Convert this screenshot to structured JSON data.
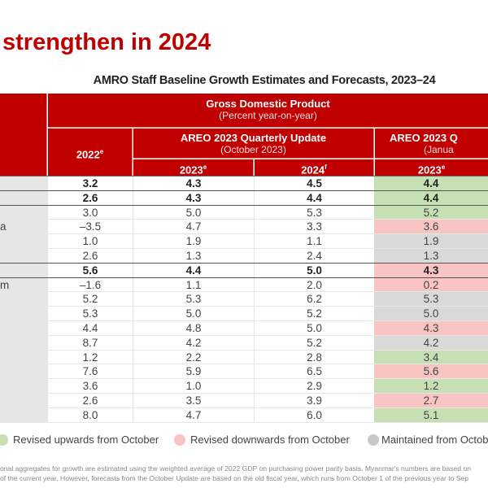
{
  "title": "strengthen in 2024",
  "subtitle": "AMRO Staff Baseline Growth Estimates and Forecasts, 2023–24",
  "header": {
    "gdp_title": "Gross Domestic Product",
    "gdp_subtitle": "(Percent year-on-year)",
    "col_2022": "2022",
    "col_2022_sup": "e",
    "oct_title": "AREO 2023 Quarterly Update",
    "oct_subtitle": "(October 2023)",
    "jan_title": "AREO 2023 Q",
    "jan_subtitle": "(Janua",
    "oct_2023": "2023",
    "oct_2023_sup": "e",
    "oct_2024": "2024",
    "oct_2024_sup": "f",
    "jan_2023": "2023",
    "jan_2023_sup": "e"
  },
  "colors": {
    "header_red": "#c00000",
    "upward": "#c6e0b4",
    "downward": "#f8c4c4",
    "maintained": "#d9d9d9",
    "label_bg": "#e7e6e6"
  },
  "rows": [
    {
      "label": "",
      "v2022": "3.2",
      "oct2023": "4.3",
      "oct2024": "4.5",
      "jan2023": "4.4",
      "revision": "upward",
      "bold": true
    },
    {
      "label": "",
      "v2022": "2.6",
      "oct2023": "4.3",
      "oct2024": "4.4",
      "jan2023": "4.4",
      "revision": "upward",
      "bold": true
    },
    {
      "label": "",
      "v2022": "3.0",
      "oct2023": "5.0",
      "oct2024": "5.3",
      "jan2023": "5.2",
      "revision": "upward"
    },
    {
      "label": "a",
      "v2022": "–3.5",
      "oct2023": "4.7",
      "oct2024": "3.3",
      "jan2023": "3.6",
      "revision": "downward"
    },
    {
      "label": "",
      "v2022": "1.0",
      "oct2023": "1.9",
      "oct2024": "1.1",
      "jan2023": "1.9",
      "revision": "maintained"
    },
    {
      "label": "",
      "v2022": "2.6",
      "oct2023": "1.3",
      "oct2024": "2.4",
      "jan2023": "1.3",
      "revision": "maintained"
    },
    {
      "label": "",
      "v2022": "5.6",
      "oct2023": "4.4",
      "oct2024": "5.0",
      "jan2023": "4.3",
      "revision": "downward",
      "bold": true
    },
    {
      "label": "m",
      "v2022": "–1.6",
      "oct2023": "1.1",
      "oct2024": "2.0",
      "jan2023": "0.2",
      "revision": "downward"
    },
    {
      "label": "",
      "v2022": "5.2",
      "oct2023": "5.3",
      "oct2024": "6.2",
      "jan2023": "5.3",
      "revision": "maintained"
    },
    {
      "label": "",
      "v2022": "5.3",
      "oct2023": "5.0",
      "oct2024": "5.2",
      "jan2023": "5.0",
      "revision": "maintained"
    },
    {
      "label": "",
      "v2022": "4.4",
      "oct2023": "4.8",
      "oct2024": "5.0",
      "jan2023": "4.3",
      "revision": "downward"
    },
    {
      "label": "",
      "v2022": "8.7",
      "oct2023": "4.2",
      "oct2024": "5.2",
      "jan2023": "4.2",
      "revision": "maintained"
    },
    {
      "label": "",
      "v2022": "1.2",
      "oct2023": "2.2",
      "oct2024": "2.8",
      "jan2023": "3.4",
      "revision": "upward"
    },
    {
      "label": "",
      "v2022": "7.6",
      "oct2023": "5.9",
      "oct2024": "6.5",
      "jan2023": "5.6",
      "revision": "downward"
    },
    {
      "label": "",
      "v2022": "3.6",
      "oct2023": "1.0",
      "oct2024": "2.9",
      "jan2023": "1.2",
      "revision": "upward"
    },
    {
      "label": "",
      "v2022": "2.6",
      "oct2023": "3.5",
      "oct2024": "3.9",
      "jan2023": "2.7",
      "revision": "downward"
    },
    {
      "label": "",
      "v2022": "8.0",
      "oct2023": "4.7",
      "oct2024": "6.0",
      "jan2023": "5.1",
      "revision": "upward"
    }
  ],
  "legend": {
    "upward": "Revised upwards from October",
    "downward": "Revised downwards from October",
    "maintained": "Maintained  from October"
  },
  "footnote": {
    "line1": "onal aggregates for growth are estimated using the weighted average of 2022 GDP  on purchasing power parity basis. Myanmar's numbers are based on",
    "line2": " of the current year. However, forecasts from the October Update are based on the old fiscal year, which runs from October 1 of the previous year to Sep"
  }
}
